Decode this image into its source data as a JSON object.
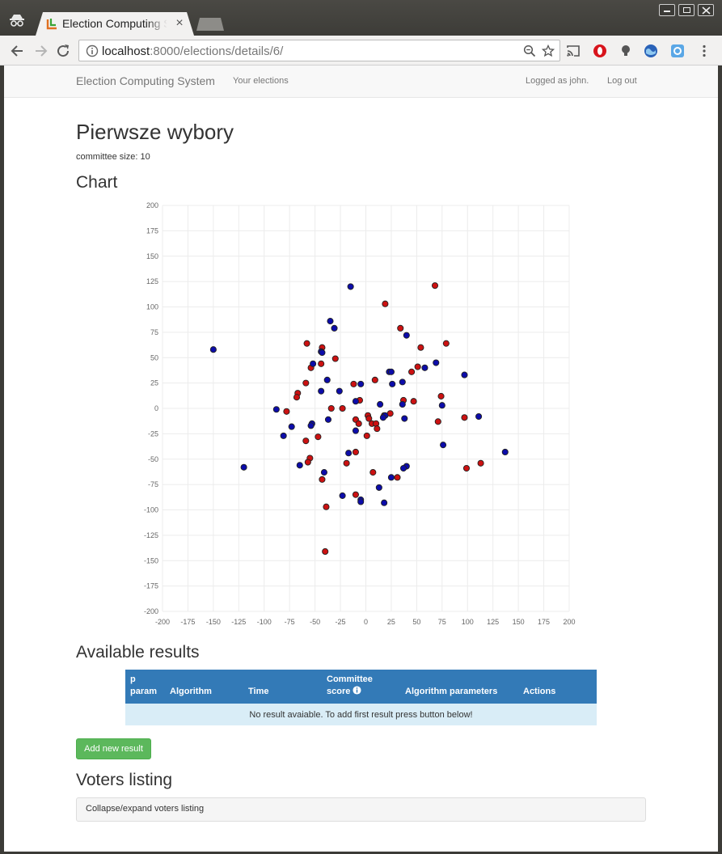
{
  "browser": {
    "tab_title": "Election Computing System",
    "tab_close": "×",
    "url_host": "localhost",
    "url_path": ":8000/elections/details/6/"
  },
  "navbar": {
    "brand": "Election Computing System",
    "your_elections": "Your elections",
    "logged_as": "Logged as john.",
    "logout": "Log out"
  },
  "election": {
    "name": "Pierwsze wybory",
    "committee_size": "committee size: 10"
  },
  "sections": {
    "chart": "Chart",
    "results": "Available results",
    "voters": "Voters listing"
  },
  "results_table": {
    "headers": {
      "p_param_line1": "p",
      "p_param_line2": "param",
      "algorithm": "Algorithm",
      "time": "Time",
      "score_line1": "Committee",
      "score_line2": "score",
      "params": "Algorithm parameters",
      "actions": "Actions"
    },
    "empty_message": "No result avaiable. To add first result press button below!"
  },
  "buttons": {
    "add_result": "Add new result"
  },
  "voters_panel": {
    "toggle": "Collapse/expand voters listing"
  },
  "colors": {
    "red": "#cc1111",
    "blue": "#0c0caa",
    "grid": "#ececec",
    "table_header": "#337ab7",
    "table_row": "#d9edf7",
    "button": "#5cb85c"
  },
  "chart_data": {
    "type": "scatter",
    "xlim": [
      -200,
      200
    ],
    "ylim": [
      -200,
      200
    ],
    "x_ticks": [
      -200,
      -175,
      -150,
      -125,
      -100,
      -75,
      -50,
      -25,
      0,
      25,
      50,
      75,
      100,
      125,
      150,
      175,
      200
    ],
    "y_ticks": [
      200,
      175,
      150,
      125,
      100,
      75,
      50,
      25,
      0,
      -25,
      -50,
      -75,
      -100,
      -125,
      -150,
      -175,
      -200
    ],
    "grid": true,
    "series": [
      {
        "color": "red",
        "points": [
          [
            68,
            121
          ],
          [
            19,
            103
          ],
          [
            34,
            79
          ],
          [
            -58,
            64
          ],
          [
            79,
            64
          ],
          [
            54,
            60
          ],
          [
            -43,
            60
          ],
          [
            -30,
            49
          ],
          [
            -44,
            44
          ],
          [
            -54,
            40
          ],
          [
            51,
            41
          ],
          [
            45,
            36
          ],
          [
            -59,
            25
          ],
          [
            -12,
            24
          ],
          [
            9,
            28
          ],
          [
            74,
            12
          ],
          [
            -67,
            15
          ],
          [
            -68,
            11
          ],
          [
            -6,
            8
          ],
          [
            37,
            8
          ],
          [
            47,
            7
          ],
          [
            -34,
            0
          ],
          [
            -23,
            0
          ],
          [
            -78,
            -3
          ],
          [
            2,
            -7
          ],
          [
            18,
            -7
          ],
          [
            24,
            -5
          ],
          [
            3,
            -10
          ],
          [
            -10,
            -11
          ],
          [
            71,
            -13
          ],
          [
            97,
            -9
          ],
          [
            -7,
            -15
          ],
          [
            6,
            -15
          ],
          [
            10,
            -15
          ],
          [
            11,
            -20
          ],
          [
            -47,
            -28
          ],
          [
            1,
            -27
          ],
          [
            -59,
            -32
          ],
          [
            -10,
            -43
          ],
          [
            -55,
            -49
          ],
          [
            -57,
            -53
          ],
          [
            -19,
            -54
          ],
          [
            113,
            -54
          ],
          [
            99,
            -59
          ],
          [
            7,
            -63
          ],
          [
            31,
            -68
          ],
          [
            -43,
            -70
          ],
          [
            -10,
            -85
          ],
          [
            -39,
            -97
          ],
          [
            -40,
            -141
          ]
        ]
      },
      {
        "color": "blue",
        "points": [
          [
            -150,
            58
          ],
          [
            -15,
            120
          ],
          [
            -35,
            86
          ],
          [
            -31,
            79
          ],
          [
            40,
            72
          ],
          [
            -44,
            56
          ],
          [
            -43,
            55
          ],
          [
            -52,
            44
          ],
          [
            69,
            45
          ],
          [
            58,
            40
          ],
          [
            23,
            36
          ],
          [
            25,
            36
          ],
          [
            -38,
            28
          ],
          [
            -5,
            24
          ],
          [
            26,
            24
          ],
          [
            36,
            26
          ],
          [
            97,
            33
          ],
          [
            -26,
            17
          ],
          [
            -44,
            17
          ],
          [
            -10,
            7
          ],
          [
            14,
            4
          ],
          [
            36,
            4
          ],
          [
            75,
            3
          ],
          [
            -88,
            -1
          ],
          [
            19,
            -7
          ],
          [
            17,
            -9
          ],
          [
            38,
            -10
          ],
          [
            111,
            -8
          ],
          [
            -37,
            -11
          ],
          [
            -53,
            -15
          ],
          [
            -54,
            -17
          ],
          [
            -73,
            -18
          ],
          [
            -10,
            -22
          ],
          [
            -81,
            -27
          ],
          [
            76,
            -36
          ],
          [
            -17,
            -44
          ],
          [
            137,
            -43
          ],
          [
            -65,
            -56
          ],
          [
            40,
            -57
          ],
          [
            37,
            -59
          ],
          [
            -120,
            -58
          ],
          [
            -41,
            -63
          ],
          [
            25,
            -68
          ],
          [
            13,
            -78
          ],
          [
            -23,
            -86
          ],
          [
            -5,
            -90
          ],
          [
            -5,
            -92
          ],
          [
            18,
            -93
          ]
        ]
      }
    ]
  }
}
